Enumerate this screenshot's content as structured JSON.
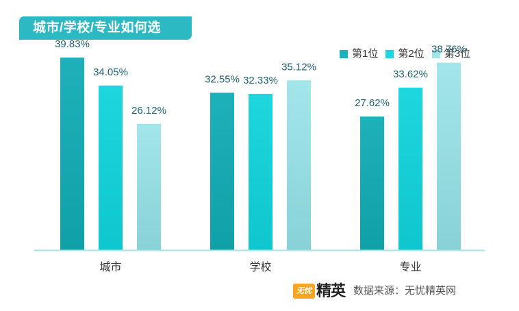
{
  "title": "城市/学校/专业如何选",
  "legend": [
    {
      "label": "第1位",
      "color": "#1fb1b9"
    },
    {
      "label": "第2位",
      "color": "#1ed6de"
    },
    {
      "label": "第3位",
      "color": "#a3e6ea"
    }
  ],
  "footer": {
    "logo_small": "无忧",
    "logo_text": "精英",
    "source": "数据来源：无忧精英网"
  },
  "chart_data": {
    "type": "bar",
    "categories": [
      "城市",
      "学校",
      "专业"
    ],
    "series": [
      {
        "name": "第1位",
        "values": [
          39.83,
          32.55,
          27.62
        ],
        "labels": [
          "39.83%",
          "32.55%",
          "27.62%"
        ]
      },
      {
        "name": "第2位",
        "values": [
          34.05,
          32.33,
          33.62
        ],
        "labels": [
          "34.05%",
          "32.33%",
          "33.62%"
        ]
      },
      {
        "name": "第3位",
        "values": [
          26.12,
          35.12,
          38.76
        ],
        "labels": [
          "26.12%",
          "35.12%",
          "38.76%"
        ]
      }
    ],
    "colors": [
      "#1fb1b9",
      "#1ed6de",
      "#a3e6ea"
    ],
    "ylim": [
      0,
      40
    ],
    "grid": false,
    "legend_position": "top-right"
  }
}
